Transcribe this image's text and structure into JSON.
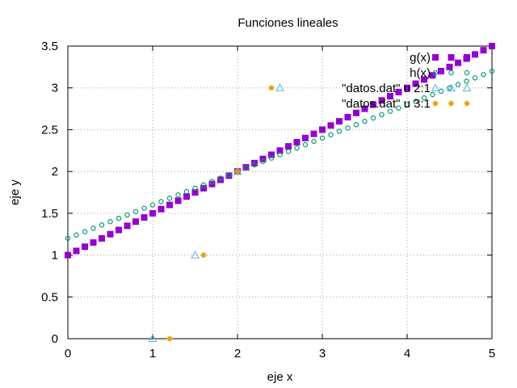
{
  "chart_data": {
    "type": "scatter",
    "title": "Funciones lineales",
    "xlabel": "eje x",
    "ylabel": "eje y",
    "xlim": [
      0,
      5
    ],
    "ylim": [
      0,
      3.5
    ],
    "xticks": [
      {
        "v": 0,
        "label": "0"
      },
      {
        "v": 1,
        "label": "1"
      },
      {
        "v": 2,
        "label": "2"
      },
      {
        "v": 3,
        "label": "3"
      },
      {
        "v": 4,
        "label": "4"
      },
      {
        "v": 5,
        "label": "5"
      }
    ],
    "yticks": [
      {
        "v": 0,
        "label": "0"
      },
      {
        "v": 0.5,
        "label": "0.5"
      },
      {
        "v": 1,
        "label": "1"
      },
      {
        "v": 1.5,
        "label": "1.5"
      },
      {
        "v": 2,
        "label": "2"
      },
      {
        "v": 2.5,
        "label": "2.5"
      },
      {
        "v": 3,
        "label": "3"
      },
      {
        "v": 3.5,
        "label": "3.5"
      }
    ],
    "grid": true,
    "legend_position": "top-right",
    "series": [
      {
        "name": "g(x)",
        "marker": "square",
        "color": "#9400d3",
        "x": [
          0,
          0.1,
          0.2,
          0.3,
          0.4,
          0.5,
          0.6,
          0.7,
          0.8,
          0.9,
          1.0,
          1.1,
          1.2,
          1.3,
          1.4,
          1.5,
          1.6,
          1.7,
          1.8,
          1.9,
          2.0,
          2.1,
          2.2,
          2.3,
          2.4,
          2.5,
          2.6,
          2.7,
          2.8,
          2.9,
          3.0,
          3.1,
          3.2,
          3.3,
          3.4,
          3.5,
          3.6,
          3.7,
          3.8,
          3.9,
          4.0,
          4.1,
          4.2,
          4.3,
          4.4,
          4.5,
          4.6,
          4.7,
          4.8,
          4.9,
          5.0
        ],
        "y": [
          1.0,
          1.05,
          1.1,
          1.15,
          1.2,
          1.25,
          1.3,
          1.35,
          1.4,
          1.45,
          1.5,
          1.55,
          1.6,
          1.65,
          1.7,
          1.75,
          1.8,
          1.85,
          1.9,
          1.95,
          2.0,
          2.05,
          2.1,
          2.15,
          2.2,
          2.25,
          2.3,
          2.35,
          2.4,
          2.45,
          2.5,
          2.55,
          2.6,
          2.65,
          2.7,
          2.75,
          2.8,
          2.85,
          2.9,
          2.95,
          3.0,
          3.05,
          3.1,
          3.15,
          3.2,
          3.25,
          3.3,
          3.35,
          3.4,
          3.45,
          3.5
        ]
      },
      {
        "name": "h(x)",
        "marker": "circle-open",
        "color": "#009e73",
        "x": [
          0,
          0.1,
          0.2,
          0.3,
          0.4,
          0.5,
          0.6,
          0.7,
          0.8,
          0.9,
          1.0,
          1.1,
          1.2,
          1.3,
          1.4,
          1.5,
          1.6,
          1.7,
          1.8,
          1.9,
          2.0,
          2.1,
          2.2,
          2.3,
          2.4,
          2.5,
          2.6,
          2.7,
          2.8,
          2.9,
          3.0,
          3.1,
          3.2,
          3.3,
          3.4,
          3.5,
          3.6,
          3.7,
          3.8,
          3.9,
          4.0,
          4.1,
          4.2,
          4.3,
          4.4,
          4.5,
          4.6,
          4.7,
          4.8,
          4.9,
          5.0
        ],
        "y": [
          1.2,
          1.24,
          1.28,
          1.32,
          1.36,
          1.4,
          1.44,
          1.48,
          1.52,
          1.56,
          1.6,
          1.64,
          1.68,
          1.72,
          1.76,
          1.8,
          1.84,
          1.88,
          1.92,
          1.96,
          2.0,
          2.04,
          2.08,
          2.12,
          2.16,
          2.2,
          2.24,
          2.28,
          2.32,
          2.36,
          2.4,
          2.44,
          2.48,
          2.52,
          2.56,
          2.6,
          2.64,
          2.68,
          2.72,
          2.76,
          2.8,
          2.84,
          2.88,
          2.92,
          2.96,
          3.0,
          3.04,
          3.08,
          3.12,
          3.16,
          3.2
        ]
      },
      {
        "name": "\"datos.dat\" u 2:1",
        "marker": "triangle-open",
        "color": "#56b4e9",
        "x": [
          1.0,
          1.5,
          2.0,
          2.5
        ],
        "y": [
          0,
          1,
          2,
          3
        ]
      },
      {
        "name": "\"datos.dat\" u 3:1",
        "marker": "star",
        "color": "#e69f00",
        "x": [
          1.2,
          1.6,
          2.0,
          2.4
        ],
        "y": [
          0,
          1,
          2,
          3
        ]
      }
    ]
  }
}
